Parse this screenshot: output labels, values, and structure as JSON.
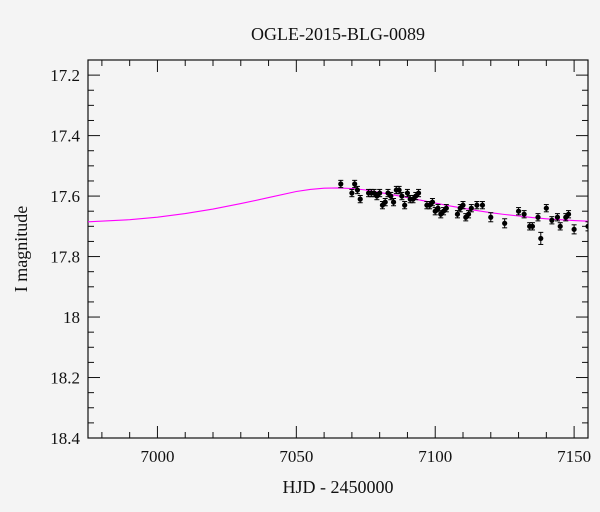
{
  "chart_data": {
    "type": "scatter",
    "title": "OGLE-2015-BLG-0089",
    "xlabel": "HJD - 2450000",
    "ylabel": "I magnitude",
    "xlim": [
      6975,
      7155
    ],
    "ylim": [
      18.4,
      17.15
    ],
    "y_inverted": true,
    "xticks": [
      7000,
      7050,
      7100,
      7150
    ],
    "xtick_labels": [
      "7000",
      "7050",
      "7100",
      "7150"
    ],
    "yticks": [
      17.2,
      17.4,
      17.6,
      17.8,
      18,
      18.2,
      18.4
    ],
    "ytick_labels": [
      "17.2",
      "17.4",
      "17.6",
      "17.8",
      "18",
      "18.2",
      "18.4"
    ],
    "grid": false,
    "colors": {
      "data": "#000000",
      "model": "#ff00ff",
      "background": "#f4f4f4"
    },
    "series": [
      {
        "kind": "points_with_errorbars",
        "x": [
          7066,
          7070,
          7071,
          7072,
          7073,
          7076,
          7077,
          7078,
          7079,
          7080,
          7081,
          7082,
          7083,
          7084,
          7085,
          7086,
          7087,
          7088,
          7089,
          7090,
          7091,
          7092,
          7093,
          7094,
          7097,
          7098,
          7099,
          7100,
          7101,
          7102,
          7103,
          7104,
          7108,
          7109,
          7110,
          7111,
          7112,
          7113,
          7115,
          7117,
          7120,
          7125,
          7130,
          7132,
          7134,
          7135,
          7137,
          7138,
          7140,
          7142,
          7144,
          7145,
          7147,
          7148,
          7150,
          7155
        ],
        "y": [
          17.56,
          17.59,
          17.56,
          17.58,
          17.61,
          17.59,
          17.59,
          17.59,
          17.6,
          17.59,
          17.63,
          17.62,
          17.59,
          17.6,
          17.62,
          17.58,
          17.58,
          17.6,
          17.63,
          17.59,
          17.61,
          17.61,
          17.6,
          17.59,
          17.63,
          17.63,
          17.62,
          17.65,
          17.64,
          17.66,
          17.65,
          17.64,
          17.66,
          17.64,
          17.63,
          17.67,
          17.66,
          17.64,
          17.63,
          17.63,
          17.67,
          17.69,
          17.65,
          17.66,
          17.7,
          17.7,
          17.67,
          17.74,
          17.64,
          17.68,
          17.67,
          17.7,
          17.67,
          17.66,
          17.71,
          17.7
        ],
        "yerr": [
          0.012,
          0.012,
          0.012,
          0.012,
          0.012,
          0.012,
          0.012,
          0.012,
          0.012,
          0.012,
          0.012,
          0.012,
          0.012,
          0.012,
          0.012,
          0.012,
          0.012,
          0.012,
          0.012,
          0.012,
          0.012,
          0.012,
          0.012,
          0.012,
          0.012,
          0.012,
          0.012,
          0.012,
          0.012,
          0.012,
          0.012,
          0.012,
          0.012,
          0.012,
          0.012,
          0.012,
          0.012,
          0.012,
          0.012,
          0.012,
          0.015,
          0.015,
          0.012,
          0.012,
          0.012,
          0.012,
          0.012,
          0.02,
          0.012,
          0.012,
          0.012,
          0.012,
          0.012,
          0.012,
          0.015,
          0.015
        ]
      },
      {
        "kind": "model_curve",
        "x": [
          6975,
          6990,
          7000,
          7010,
          7020,
          7030,
          7040,
          7050,
          7055,
          7060,
          7065,
          7070,
          7075,
          7080,
          7085,
          7090,
          7095,
          7100,
          7105,
          7110,
          7115,
          7120,
          7125,
          7130,
          7135,
          7140,
          7145,
          7150,
          7155
        ],
        "y": [
          17.685,
          17.678,
          17.67,
          17.658,
          17.643,
          17.625,
          17.605,
          17.585,
          17.578,
          17.574,
          17.573,
          17.575,
          17.58,
          17.588,
          17.596,
          17.605,
          17.614,
          17.623,
          17.632,
          17.64,
          17.648,
          17.655,
          17.661,
          17.666,
          17.671,
          17.675,
          17.678,
          17.681,
          17.683
        ]
      }
    ]
  }
}
